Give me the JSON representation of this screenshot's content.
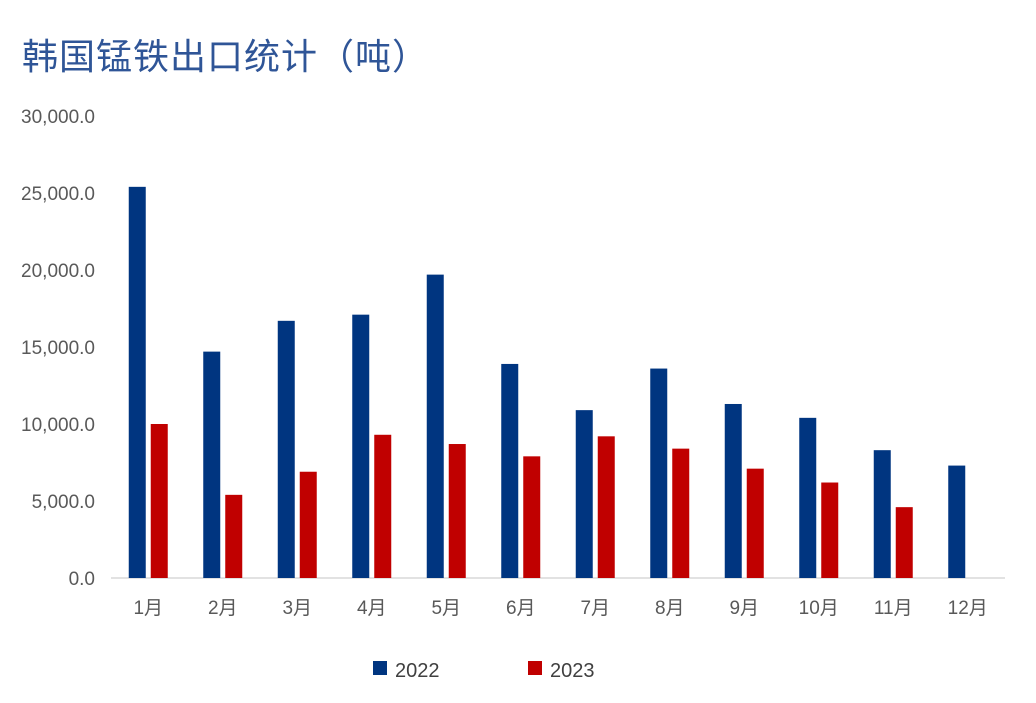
{
  "chart_data": {
    "type": "bar",
    "title": "韩国锰铁出口统计（吨）",
    "categories": [
      "1月",
      "2月",
      "3月",
      "4月",
      "5月",
      "6月",
      "7月",
      "8月",
      "9月",
      "10月",
      "11月",
      "12月"
    ],
    "series": [
      {
        "name": "2022",
        "color": "#003580",
        "values": [
          25400,
          14700,
          16700,
          17100,
          19700,
          13900,
          10900,
          13600,
          11300,
          10400,
          8300,
          7300
        ]
      },
      {
        "name": "2023",
        "color": "#c00000",
        "values": [
          10000,
          5400,
          6900,
          9300,
          8700,
          7900,
          9200,
          8400,
          7100,
          6200,
          4600,
          null
        ]
      }
    ],
    "yticks": [
      "0.0",
      "5,000.0",
      "10,000.0",
      "15,000.0",
      "20,000.0",
      "25,000.0",
      "30,000.0"
    ],
    "ylim": [
      0,
      30000
    ],
    "xlabel": "",
    "ylabel": "",
    "grid": false,
    "legend_position": "bottom"
  }
}
